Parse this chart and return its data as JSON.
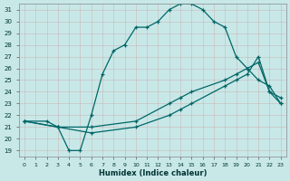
{
  "xlabel": "Humidex (Indice chaleur)",
  "bg_color": "#c8e8e8",
  "line_color": "#006666",
  "grid_color": "#b0d8d8",
  "xlim": [
    -0.5,
    23.5
  ],
  "ylim": [
    18.5,
    31.5
  ],
  "xticks": [
    0,
    1,
    2,
    3,
    4,
    5,
    6,
    7,
    8,
    9,
    10,
    11,
    12,
    13,
    14,
    15,
    16,
    17,
    18,
    19,
    20,
    21,
    22,
    23
  ],
  "yticks": [
    19,
    20,
    21,
    22,
    23,
    24,
    25,
    26,
    27,
    28,
    29,
    30,
    31
  ],
  "line3_x": [
    0,
    2,
    3,
    4,
    5,
    6,
    7,
    8,
    9,
    10,
    11,
    12,
    13,
    14,
    15,
    16,
    17,
    18,
    19,
    20,
    21,
    22,
    23
  ],
  "line3_y": [
    21.5,
    21.5,
    21.0,
    19.0,
    19.0,
    22.0,
    25.5,
    27.5,
    28.0,
    29.5,
    29.5,
    30.0,
    31.0,
    31.5,
    31.5,
    31.0,
    30.0,
    29.5,
    27.0,
    26.0,
    25.0,
    24.5,
    23.0
  ],
  "line2_x": [
    0,
    3,
    6,
    10,
    13,
    14,
    15,
    18,
    19,
    20,
    21,
    22,
    23
  ],
  "line2_y": [
    21.5,
    21.0,
    21.0,
    21.5,
    23.0,
    23.5,
    24.0,
    25.0,
    25.5,
    26.0,
    26.5,
    24.0,
    23.5
  ],
  "line1_x": [
    0,
    3,
    6,
    10,
    13,
    14,
    15,
    18,
    19,
    20,
    21,
    22,
    23
  ],
  "line1_y": [
    21.5,
    21.0,
    20.5,
    21.0,
    22.0,
    22.5,
    23.0,
    24.5,
    25.0,
    25.5,
    27.0,
    24.0,
    23.0
  ]
}
